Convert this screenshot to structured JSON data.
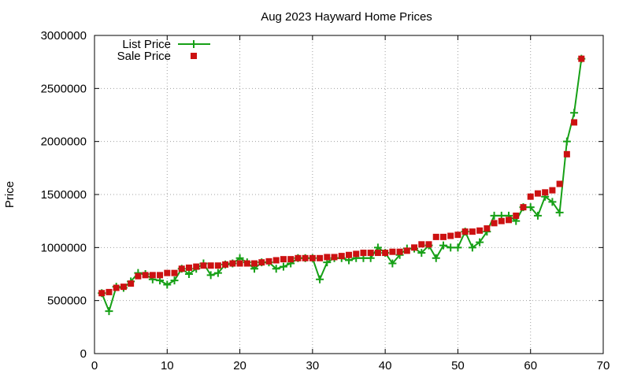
{
  "chart_data": {
    "type": "line",
    "title": "Aug 2023 Hayward Home Prices",
    "xlabel": "",
    "ylabel": "Price",
    "xlim": [
      0,
      70
    ],
    "ylim": [
      0,
      3000000
    ],
    "x_ticks": [
      0,
      10,
      20,
      30,
      40,
      50,
      60,
      70
    ],
    "y_ticks": [
      0,
      500000,
      1000000,
      1500000,
      2000000,
      2500000,
      3000000
    ],
    "grid": true,
    "legend_position": "top-left",
    "x": [
      1,
      2,
      3,
      4,
      5,
      6,
      7,
      8,
      9,
      10,
      11,
      12,
      13,
      14,
      15,
      16,
      17,
      18,
      19,
      20,
      21,
      22,
      23,
      24,
      25,
      26,
      27,
      28,
      29,
      30,
      31,
      32,
      33,
      34,
      35,
      36,
      37,
      38,
      39,
      40,
      41,
      42,
      43,
      44,
      45,
      46,
      47,
      48,
      49,
      50,
      51,
      52,
      53,
      54,
      55,
      56,
      57,
      58,
      59,
      60,
      61,
      62,
      63,
      64,
      65,
      66,
      67
    ],
    "series": [
      {
        "name": "List Price",
        "style": "linespoints",
        "marker": "plus",
        "color": "#16a016",
        "values": [
          570000,
          400000,
          630000,
          620000,
          680000,
          760000,
          750000,
          700000,
          690000,
          650000,
          690000,
          800000,
          750000,
          800000,
          850000,
          740000,
          760000,
          840000,
          850000,
          900000,
          860000,
          800000,
          860000,
          860000,
          800000,
          820000,
          850000,
          900000,
          900000,
          900000,
          700000,
          860000,
          900000,
          900000,
          880000,
          900000,
          900000,
          900000,
          1000000,
          950000,
          850000,
          930000,
          990000,
          990000,
          950000,
          1020000,
          900000,
          1020000,
          1000000,
          1000000,
          1150000,
          1000000,
          1050000,
          1150000,
          1300000,
          1300000,
          1300000,
          1250000,
          1380000,
          1380000,
          1300000,
          1480000,
          1430000,
          1330000,
          2000000,
          2270000,
          2780000
        ]
      },
      {
        "name": "Sale Price",
        "style": "points",
        "marker": "square",
        "color": "#cc1111",
        "values": [
          570000,
          580000,
          620000,
          630000,
          660000,
          730000,
          740000,
          740000,
          740000,
          760000,
          760000,
          800000,
          810000,
          820000,
          830000,
          830000,
          830000,
          840000,
          850000,
          850000,
          850000,
          850000,
          860000,
          870000,
          880000,
          890000,
          890000,
          900000,
          900000,
          900000,
          900000,
          910000,
          910000,
          920000,
          930000,
          940000,
          950000,
          950000,
          950000,
          950000,
          960000,
          960000,
          970000,
          1000000,
          1030000,
          1030000,
          1100000,
          1100000,
          1110000,
          1120000,
          1150000,
          1150000,
          1160000,
          1180000,
          1230000,
          1250000,
          1260000,
          1300000,
          1380000,
          1480000,
          1510000,
          1520000,
          1540000,
          1600000,
          1880000,
          2180000,
          2780000
        ]
      }
    ]
  }
}
